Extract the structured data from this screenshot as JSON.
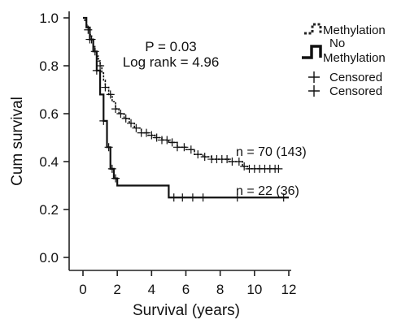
{
  "chart_data": {
    "type": "line",
    "title": "",
    "xlabel": "Survival (years)",
    "ylabel": "Cum survival",
    "xlim": [
      0,
      12
    ],
    "ylim": [
      0,
      1.0
    ],
    "x_ticks": [
      "0",
      "2",
      "4",
      "6",
      "8",
      "10",
      "12"
    ],
    "y_ticks": [
      "0.0",
      "0.2",
      "0.4",
      "0.6",
      "0.8",
      "1.0"
    ],
    "grid": false,
    "legend_position": "top-right",
    "annotation": {
      "p_value": "P = 0.03",
      "log_rank": "Log rank = 4.96"
    },
    "legend": [
      {
        "label": "Methylation",
        "style": "dotted"
      },
      {
        "label": "No Methylation",
        "style": "solid"
      },
      {
        "label": "Censored",
        "style": "marker"
      },
      {
        "label": "Censored",
        "style": "marker"
      }
    ],
    "series": [
      {
        "name": "Methylation",
        "n_label": "n = 70 (143)",
        "style": "dotted",
        "x": [
          0,
          0.1,
          0.2,
          0.3,
          0.4,
          0.5,
          0.6,
          0.7,
          0.8,
          0.9,
          1.0,
          1.1,
          1.2,
          1.3,
          1.5,
          1.7,
          1.9,
          2.1,
          2.4,
          2.7,
          3.0,
          3.4,
          3.8,
          4.2,
          4.6,
          5.0,
          5.5,
          6.0,
          6.5,
          7.0,
          7.5,
          8.0,
          8.5,
          9.0,
          9.3,
          9.6,
          10.2,
          10.8,
          11.3
        ],
        "y": [
          1.0,
          0.99,
          0.97,
          0.95,
          0.93,
          0.91,
          0.88,
          0.86,
          0.84,
          0.82,
          0.8,
          0.77,
          0.74,
          0.71,
          0.68,
          0.65,
          0.62,
          0.6,
          0.58,
          0.56,
          0.54,
          0.52,
          0.51,
          0.5,
          0.49,
          0.48,
          0.46,
          0.45,
          0.43,
          0.42,
          0.41,
          0.41,
          0.4,
          0.4,
          0.38,
          0.37,
          0.37,
          0.37,
          0.37
        ],
        "censored_x": [
          0.3,
          0.5,
          0.7,
          1.0,
          1.3,
          1.6,
          1.9,
          2.2,
          2.5,
          2.8,
          3.1,
          3.4,
          3.7,
          4.0,
          4.3,
          4.6,
          4.9,
          5.2,
          5.5,
          5.9,
          6.3,
          6.7,
          7.1,
          7.5,
          7.8,
          8.1,
          8.4,
          8.7,
          9.1,
          9.4,
          9.7,
          10.0,
          10.3,
          10.6,
          10.9,
          11.2,
          11.4
        ]
      },
      {
        "name": "No Methylation",
        "n_label": "n = 22 (36)",
        "style": "solid",
        "x": [
          0,
          0.2,
          0.4,
          0.6,
          0.8,
          1.0,
          1.2,
          1.4,
          1.6,
          1.8,
          2.0,
          5.0,
          12.0
        ],
        "y": [
          1.0,
          0.96,
          0.91,
          0.86,
          0.78,
          0.68,
          0.57,
          0.46,
          0.37,
          0.33,
          0.3,
          0.25,
          0.25
        ],
        "censored_x": [
          0.4,
          0.8,
          1.2,
          1.5,
          1.7,
          1.9,
          5.3,
          5.8,
          6.4,
          7.0,
          9.0,
          11.7
        ]
      }
    ]
  }
}
